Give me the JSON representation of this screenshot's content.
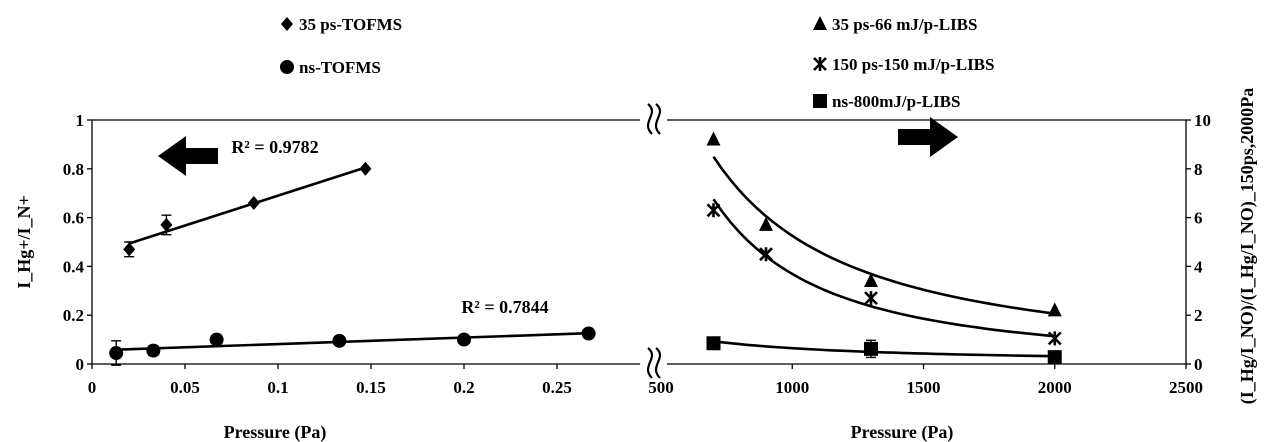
{
  "chart_data": [
    {
      "type": "scatter",
      "x_label": "Pressure (Pa)",
      "y_label": "I_Hg+/I_N+",
      "xlim": [
        0,
        0.3
      ],
      "ylim": [
        0,
        1
      ],
      "x_ticks": [
        "0",
        "0.05",
        "0.1",
        "0.15",
        "0.2",
        "0.25"
      ],
      "y_ticks": [
        "0",
        "0.2",
        "0.4",
        "0.6",
        "0.8",
        "1"
      ],
      "series": [
        {
          "name": "35 ps-TOFMS",
          "marker": "diamond",
          "points": [
            {
              "x": 0.02,
              "y": 0.47,
              "err": 0.03
            },
            {
              "x": 0.04,
              "y": 0.57,
              "err": 0.04
            },
            {
              "x": 0.087,
              "y": 0.66,
              "err": 0.0
            },
            {
              "x": 0.147,
              "y": 0.8,
              "err": 0.0
            }
          ],
          "trend": "linear",
          "r2": "R² = 0.9782"
        },
        {
          "name": "ns-TOFMS",
          "marker": "circle",
          "points": [
            {
              "x": 0.013,
              "y": 0.045,
              "err": 0.05
            },
            {
              "x": 0.033,
              "y": 0.055,
              "err": 0.02
            },
            {
              "x": 0.067,
              "y": 0.1,
              "err": 0.0
            },
            {
              "x": 0.133,
              "y": 0.095,
              "err": 0.0
            },
            {
              "x": 0.2,
              "y": 0.1,
              "err": 0.0
            },
            {
              "x": 0.267,
              "y": 0.125,
              "err": 0.0
            }
          ],
          "trend": "linear",
          "r2": "R² = 0.7844"
        }
      ],
      "arrow": "left"
    },
    {
      "type": "scatter",
      "x_label": "Pressure (Pa)",
      "y_label": "(I_Hg/I_NO)/(I_Hg/I_NO)_150ps,2000Pa",
      "xlim": [
        0,
        2500
      ],
      "ylim": [
        0,
        10
      ],
      "x_ticks": [
        "500",
        "1000",
        "1500",
        "2000",
        "2500"
      ],
      "y_ticks": [
        "0",
        "2",
        "4",
        "6",
        "8",
        "10"
      ],
      "series": [
        {
          "name": "35 ps-66 mJ/p-LIBS",
          "marker": "triangle",
          "points": [
            {
              "x": 700,
              "y": 9.2
            },
            {
              "x": 900,
              "y": 5.7
            },
            {
              "x": 1300,
              "y": 3.4
            },
            {
              "x": 2000,
              "y": 2.2
            }
          ]
        },
        {
          "name": "150 ps-150 mJ/p-LIBS",
          "marker": "asterisk",
          "points": [
            {
              "x": 700,
              "y": 6.3
            },
            {
              "x": 900,
              "y": 4.5
            },
            {
              "x": 1300,
              "y": 2.7
            },
            {
              "x": 2000,
              "y": 1.05
            }
          ]
        },
        {
          "name": "ns-800mJ/p-LIBS",
          "marker": "square",
          "points": [
            {
              "x": 700,
              "y": 0.85,
              "err": 0.0
            },
            {
              "x": 1300,
              "y": 0.62,
              "err": 0.35
            },
            {
              "x": 2000,
              "y": 0.28,
              "err": 0.0
            }
          ]
        }
      ],
      "arrow": "right"
    }
  ]
}
